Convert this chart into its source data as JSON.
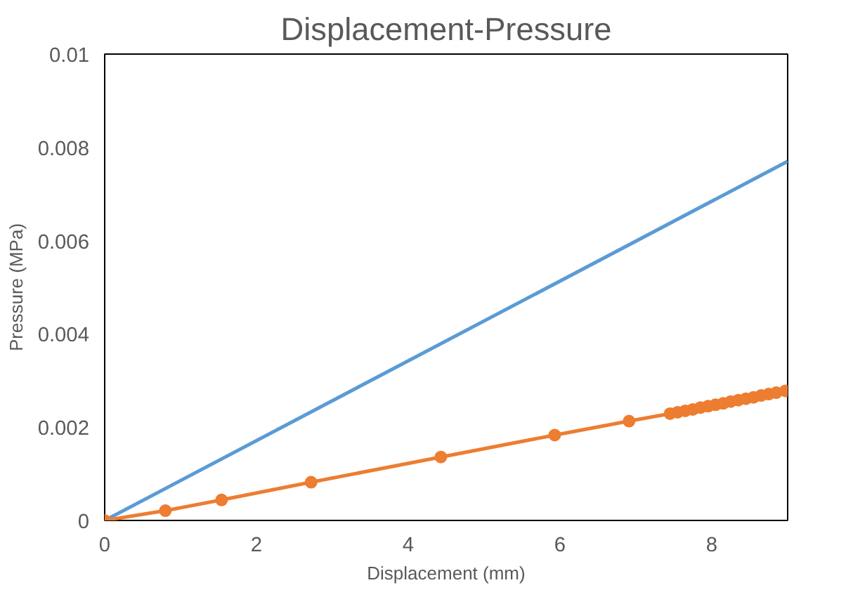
{
  "chart_data": {
    "type": "line",
    "title": "Displacement-Pressure",
    "xlabel": "Displacement (mm)",
    "ylabel": "Pressure (MPa)",
    "xlim": [
      0,
      9
    ],
    "xticks": [
      0,
      2,
      4,
      6,
      8
    ],
    "ylim": [
      0,
      0.01
    ],
    "yticks": [
      0,
      0.002,
      0.004,
      0.006,
      0.008,
      0.01
    ],
    "grid": false,
    "series": [
      {
        "color": "#5b9bd5",
        "marker": "none",
        "x": [
          0,
          9
        ],
        "values": [
          0,
          0.0077
        ]
      },
      {
        "color": "#ed7d31",
        "marker": "circle",
        "x": [
          0,
          0.8,
          1.54,
          2.72,
          4.43,
          5.93,
          6.91,
          7.45,
          7.55,
          7.65,
          7.75,
          7.85,
          7.95,
          8.05,
          8.15,
          8.25,
          8.35,
          8.45,
          8.55,
          8.65,
          8.75,
          8.85,
          8.97
        ],
        "values": [
          0,
          0.00021,
          0.00044,
          0.00082,
          0.00136,
          0.00183,
          0.00213,
          0.00229,
          0.00232,
          0.00235,
          0.00238,
          0.00242,
          0.00245,
          0.00248,
          0.00251,
          0.00255,
          0.00258,
          0.00261,
          0.00264,
          0.00268,
          0.00271,
          0.00274,
          0.00278
        ]
      }
    ]
  }
}
